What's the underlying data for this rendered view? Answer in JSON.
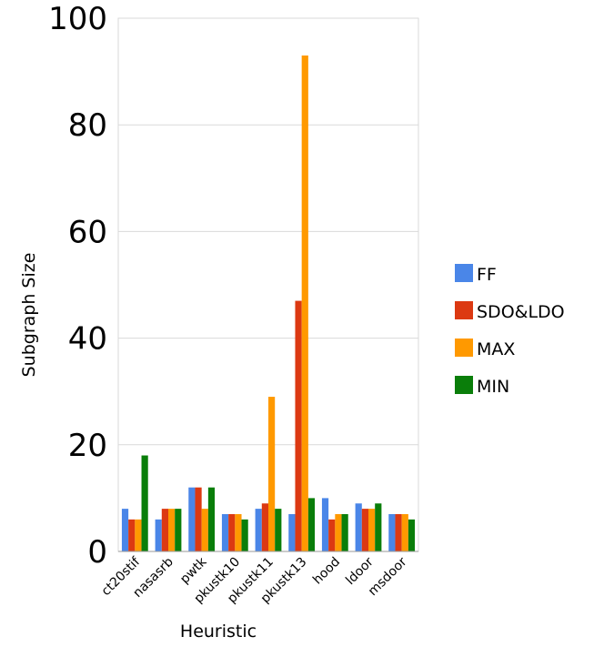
{
  "chart_data": {
    "type": "bar",
    "title": "",
    "xlabel": "Heuristic",
    "ylabel": "Subgraph Size",
    "ylim": [
      0,
      100
    ],
    "yticks": [
      "0",
      "20",
      "40",
      "60",
      "80",
      "100"
    ],
    "grid": true,
    "legend_position": "right",
    "categories": [
      "ct20stif",
      "nasasrb",
      "pwtk",
      "pkustk10",
      "pkustk11",
      "pkustk13",
      "hood",
      "ldoor",
      "msdoor"
    ],
    "series": [
      {
        "name": "FF",
        "color": "#4a86e8",
        "values": [
          8,
          6,
          12,
          7,
          8,
          7,
          10,
          9,
          7
        ]
      },
      {
        "name": "SDO&LDO",
        "color": "#dc3912",
        "values": [
          6,
          8,
          12,
          7,
          9,
          47,
          6,
          8,
          7
        ]
      },
      {
        "name": "MAX",
        "color": "#ff9900",
        "values": [
          6,
          8,
          8,
          7,
          29,
          93,
          7,
          8,
          7
        ]
      },
      {
        "name": "MIN",
        "color": "#0a7e0a",
        "values": [
          18,
          8,
          12,
          6,
          8,
          10,
          7,
          9,
          6
        ]
      }
    ]
  }
}
